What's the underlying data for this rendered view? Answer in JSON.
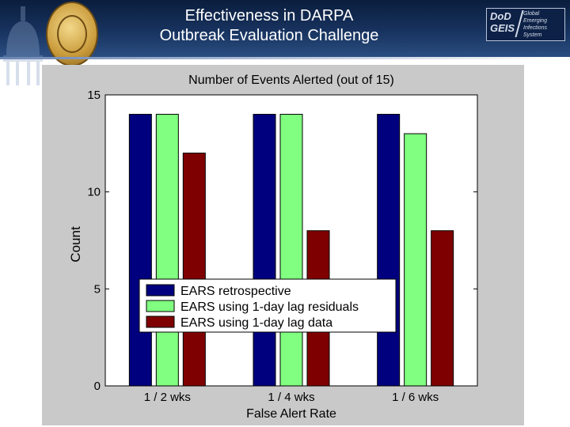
{
  "slide": {
    "title_line1": "Effectiveness in DARPA",
    "title_line2": "Outbreak Evaluation Challenge",
    "logo": {
      "line1": "DoD",
      "line2": "GEIS",
      "caption1": "Global",
      "caption2": "Emerging",
      "caption3": "Infections",
      "caption4": "System"
    }
  },
  "chart_data": {
    "type": "bar",
    "title": "Number of Events Alerted (out of 15)",
    "xlabel": "False Alert Rate",
    "ylabel": "Count",
    "categories": [
      "1 / 2 wks",
      "1 / 4 wks",
      "1 / 6 wks"
    ],
    "ylim": [
      0,
      15
    ],
    "yticks": [
      0,
      5,
      10,
      15
    ],
    "grid": false,
    "legend_position": "lower-left",
    "series": [
      {
        "name": "EARS retrospective",
        "values": [
          14,
          14,
          14
        ],
        "color": "#00007f"
      },
      {
        "name": "EARS using 1-day lag residuals",
        "values": [
          14,
          14,
          13
        ],
        "color": "#80ff80"
      },
      {
        "name": "EARS using 1-day lag data",
        "values": [
          12,
          8,
          8
        ],
        "color": "#7f0000"
      }
    ]
  }
}
